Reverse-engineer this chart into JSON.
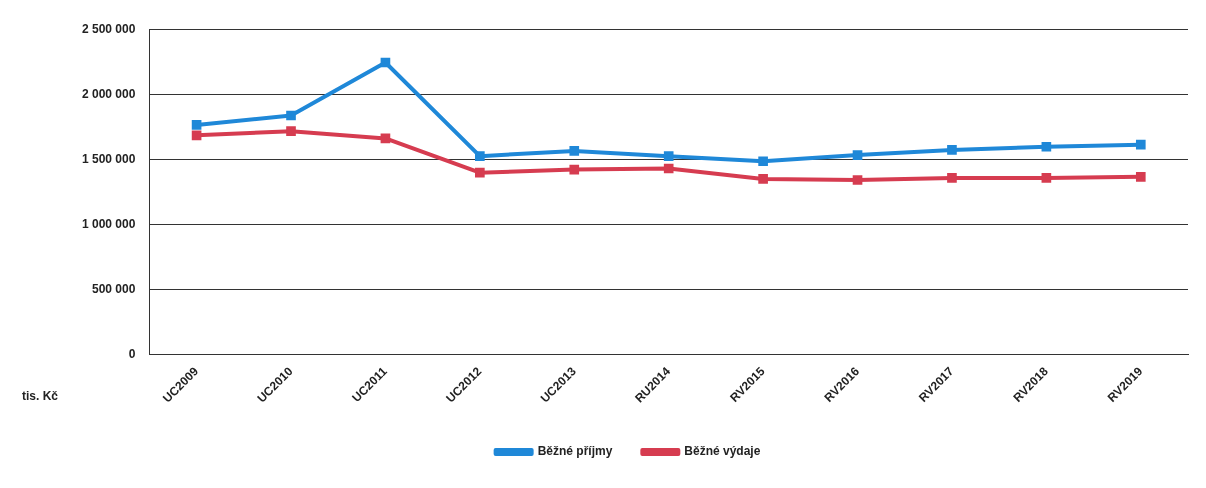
{
  "chart_data": {
    "type": "line",
    "ylabel": "tis. Kč",
    "categories": [
      "UC2009",
      "UC2010",
      "UC2011",
      "UC2012",
      "UC2013",
      "RU2014",
      "RV2015",
      "RV2016",
      "RV2017",
      "RV2018",
      "RV2019"
    ],
    "series": [
      {
        "name": "Běžné příjmy",
        "color": "#1f88d8",
        "values": [
          1765000,
          1837000,
          2244000,
          1525000,
          1565000,
          1525000,
          1486000,
          1533000,
          1573000,
          1597000,
          1613000
        ]
      },
      {
        "name": "Běžné výdaje",
        "color": "#d63c50",
        "values": [
          1685000,
          1717000,
          1661000,
          1398000,
          1422000,
          1430000,
          1350000,
          1342000,
          1358000,
          1358000,
          1366000
        ]
      }
    ],
    "ylim": [
      0,
      2500000
    ],
    "yticks": [
      {
        "value": 0,
        "label": "0"
      },
      {
        "value": 500000,
        "label": "500 000"
      },
      {
        "value": 1000000,
        "label": "1 000 000"
      },
      {
        "value": 1500000,
        "label": "1 500 000"
      },
      {
        "value": 2000000,
        "label": "2 000 000"
      },
      {
        "value": 2500000,
        "label": "2 500 000"
      }
    ],
    "grid": "y",
    "legend": "bottom",
    "marker": "square",
    "line_style": "solid"
  }
}
